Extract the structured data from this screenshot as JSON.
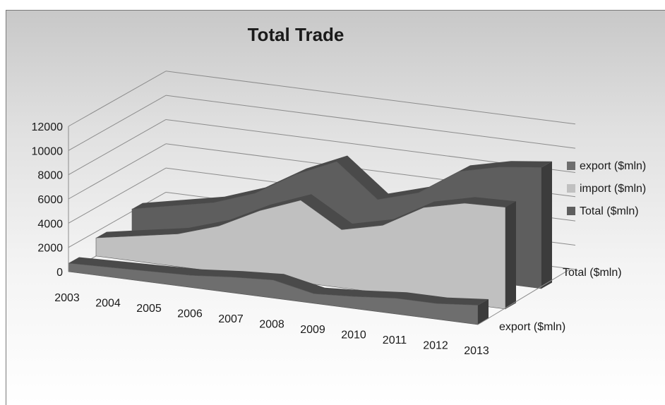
{
  "chart_data": {
    "type": "area",
    "title": "Total Trade",
    "xlabel": "",
    "ylabel": "",
    "categories": [
      "2003",
      "2004",
      "2005",
      "2006",
      "2007",
      "2008",
      "2009",
      "2010",
      "2011",
      "2012",
      "2013"
    ],
    "y_ticks": [
      "0",
      "2000",
      "4000",
      "6000",
      "8000",
      "10000",
      "12000"
    ],
    "ylim": [
      0,
      12000
    ],
    "grid": true,
    "legend_position": "right",
    "depth_labels": [
      "Total ($mln)",
      "export ($mln)"
    ],
    "series": [
      {
        "name": "export ($mln)",
        "color": "#6e6e6e",
        "values": [
          700,
          800,
          900,
          1000,
          1300,
          1500,
          800,
          1000,
          1300,
          1300,
          1600
        ]
      },
      {
        "name": "import ($mln)",
        "color": "#c0c0c0",
        "values": [
          1500,
          2100,
          2700,
          3800,
          5500,
          6800,
          4800,
          5600,
          7500,
          8300,
          8400
        ]
      },
      {
        "name": "Total ($mln)",
        "color": "#5e5e5e",
        "values": [
          2200,
          2900,
          3600,
          4800,
          6800,
          8300,
          5600,
          6600,
          8800,
          9600,
          10000
        ]
      }
    ]
  }
}
